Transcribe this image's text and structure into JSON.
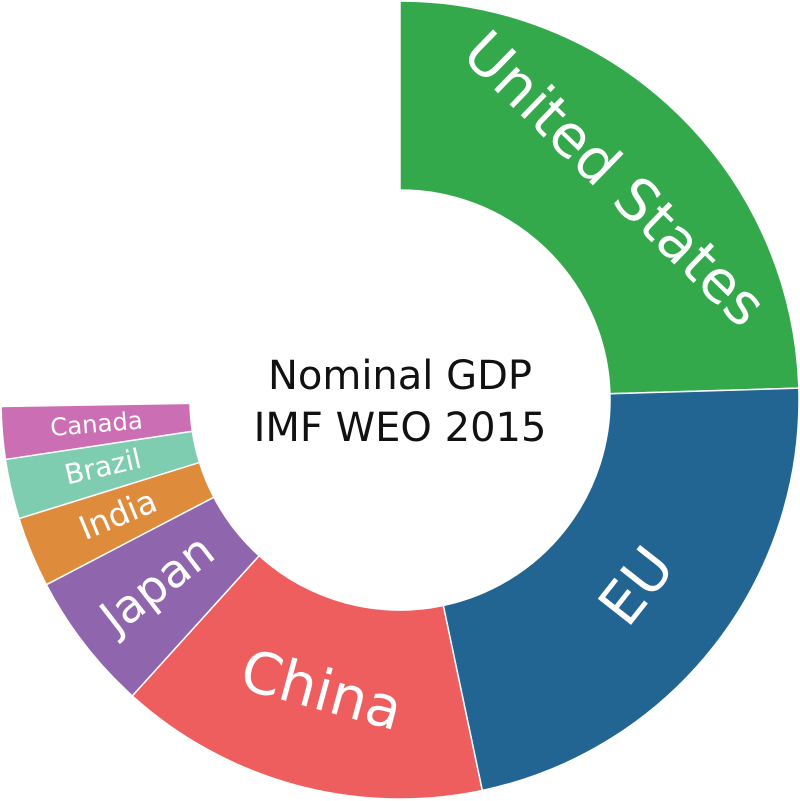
{
  "chart_data": {
    "type": "donut",
    "title": "Nominal GDP",
    "subtitle": "IMF WEO 2015",
    "categories": [
      "United States",
      "EU",
      "China",
      "Japan",
      "India",
      "Brazil",
      "Canada"
    ],
    "values": [
      17947,
      16220,
      10983,
      4123,
      2091,
      1773,
      1552
    ],
    "colors": [
      "#33a94b",
      "#236592",
      "#ef5e5e",
      "#8f65ae",
      "#de8c3b",
      "#7ecdb1",
      "#cc6eb3"
    ],
    "ylim": [
      0,
      73171
    ]
  }
}
